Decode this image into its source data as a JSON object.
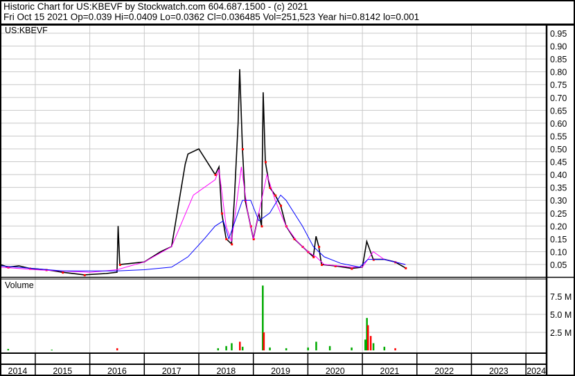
{
  "header": {
    "title": "Historic Chart for US:KBEVF by Stockwatch.com 604.687.1500 - (c) 2021",
    "quote": "Fri Oct 15 2021  Op=0.039  Hi=0.0409  Lo=0.0362  Cl=0.036485  Vol=251,523  Year hi=0.8142  lo=0.001"
  },
  "chart_data": [
    {
      "type": "line",
      "title": "US:KBEVF",
      "ylim": [
        0,
        0.975
      ],
      "yticks": [
        "0.05",
        "0.10",
        "0.15",
        "0.20",
        "0.25",
        "0.30",
        "0.35",
        "0.40",
        "0.45",
        "0.50",
        "0.55",
        "0.60",
        "0.65",
        "0.70",
        "0.75",
        "0.80",
        "0.85",
        "0.90",
        "0.95"
      ],
      "xticks": [
        "2014",
        "2015",
        "2016",
        "2017",
        "2018",
        "2019",
        "2020",
        "2021",
        "2022",
        "2023",
        "2024"
      ],
      "grid": true,
      "colors": {
        "price": "#000000",
        "ma_short": "#ff00ff",
        "ma_long": "#0000ff",
        "down": "#ff0000"
      },
      "series": [
        {
          "key": "price",
          "points": [
            [
              2014.36,
              0.05
            ],
            [
              2014.5,
              0.04
            ],
            [
              2014.7,
              0.045
            ],
            [
              2014.9,
              0.035
            ],
            [
              2015.2,
              0.03
            ],
            [
              2015.5,
              0.02
            ],
            [
              2015.9,
              0.01
            ],
            [
              2016.3,
              0.015
            ],
            [
              2016.5,
              0.02
            ],
            [
              2016.52,
              0.2
            ],
            [
              2016.55,
              0.05
            ],
            [
              2017.0,
              0.06
            ],
            [
              2017.3,
              0.1
            ],
            [
              2017.5,
              0.12
            ],
            [
              2017.75,
              0.44
            ],
            [
              2017.8,
              0.48
            ],
            [
              2018.0,
              0.5
            ],
            [
              2018.3,
              0.4
            ],
            [
              2018.37,
              0.43
            ],
            [
              2018.42,
              0.25
            ],
            [
              2018.5,
              0.15
            ],
            [
              2018.6,
              0.13
            ],
            [
              2018.65,
              0.3
            ],
            [
              2018.72,
              0.6
            ],
            [
              2018.75,
              0.81
            ],
            [
              2018.8,
              0.5
            ],
            [
              2018.85,
              0.3
            ],
            [
              2018.95,
              0.2
            ],
            [
              2019.0,
              0.15
            ],
            [
              2019.1,
              0.25
            ],
            [
              2019.15,
              0.2
            ],
            [
              2019.18,
              0.72
            ],
            [
              2019.22,
              0.45
            ],
            [
              2019.3,
              0.35
            ],
            [
              2019.4,
              0.32
            ],
            [
              2019.5,
              0.28
            ],
            [
              2019.6,
              0.2
            ],
            [
              2019.75,
              0.15
            ],
            [
              2019.9,
              0.12
            ],
            [
              2020.0,
              0.1
            ],
            [
              2020.1,
              0.08
            ],
            [
              2020.15,
              0.16
            ],
            [
              2020.2,
              0.12
            ],
            [
              2020.25,
              0.05
            ],
            [
              2020.5,
              0.045
            ],
            [
              2020.8,
              0.035
            ],
            [
              2021.0,
              0.04
            ],
            [
              2021.08,
              0.14
            ],
            [
              2021.2,
              0.07
            ],
            [
              2021.4,
              0.07
            ],
            [
              2021.6,
              0.06
            ],
            [
              2021.79,
              0.037
            ]
          ]
        },
        {
          "key": "ma_short",
          "points": [
            [
              2014.36,
              0.04
            ],
            [
              2015.0,
              0.03
            ],
            [
              2016.0,
              0.02
            ],
            [
              2016.5,
              0.03
            ],
            [
              2017.0,
              0.06
            ],
            [
              2017.5,
              0.12
            ],
            [
              2017.7,
              0.22
            ],
            [
              2017.9,
              0.32
            ],
            [
              2018.3,
              0.38
            ],
            [
              2018.37,
              0.42
            ],
            [
              2018.5,
              0.2
            ],
            [
              2018.6,
              0.14
            ],
            [
              2018.7,
              0.3
            ],
            [
              2018.78,
              0.43
            ],
            [
              2018.9,
              0.25
            ],
            [
              2019.0,
              0.15
            ],
            [
              2019.15,
              0.3
            ],
            [
              2019.25,
              0.4
            ],
            [
              2019.4,
              0.3
            ],
            [
              2019.6,
              0.2
            ],
            [
              2019.8,
              0.14
            ],
            [
              2020.0,
              0.1
            ],
            [
              2020.15,
              0.08
            ],
            [
              2020.3,
              0.05
            ],
            [
              2020.8,
              0.04
            ],
            [
              2021.0,
              0.04
            ],
            [
              2021.2,
              0.1
            ],
            [
              2021.4,
              0.07
            ],
            [
              2021.79,
              0.05
            ]
          ]
        },
        {
          "key": "ma_long",
          "points": [
            [
              2014.36,
              0.045
            ],
            [
              2015.5,
              0.025
            ],
            [
              2016.5,
              0.025
            ],
            [
              2017.0,
              0.03
            ],
            [
              2017.5,
              0.04
            ],
            [
              2017.8,
              0.08
            ],
            [
              2018.1,
              0.15
            ],
            [
              2018.3,
              0.2
            ],
            [
              2018.45,
              0.22
            ],
            [
              2018.55,
              0.15
            ],
            [
              2018.8,
              0.3
            ],
            [
              2018.95,
              0.3
            ],
            [
              2019.1,
              0.22
            ],
            [
              2019.3,
              0.25
            ],
            [
              2019.5,
              0.32
            ],
            [
              2019.6,
              0.3
            ],
            [
              2019.9,
              0.2
            ],
            [
              2020.1,
              0.12
            ],
            [
              2020.3,
              0.08
            ],
            [
              2020.6,
              0.055
            ],
            [
              2020.95,
              0.04
            ],
            [
              2021.1,
              0.07
            ],
            [
              2021.4,
              0.07
            ],
            [
              2021.79,
              0.05
            ]
          ]
        }
      ]
    },
    {
      "type": "bar",
      "title": "Volume",
      "ylim": [
        0,
        10
      ],
      "yticks": [
        "2.5 M",
        "5.0 M",
        "7.5 M"
      ],
      "colors": {
        "up": "#00aa00",
        "down": "#ff0000"
      },
      "bars": [
        [
          2014.5,
          0.2,
          "up"
        ],
        [
          2015.3,
          0.1,
          "up"
        ],
        [
          2016.5,
          0.3,
          "down"
        ],
        [
          2018.35,
          0.3,
          "up"
        ],
        [
          2018.5,
          0.6,
          "up"
        ],
        [
          2018.6,
          1.0,
          "up"
        ],
        [
          2018.75,
          1.2,
          "down"
        ],
        [
          2018.8,
          0.5,
          "up"
        ],
        [
          2019.17,
          9.0,
          "up"
        ],
        [
          2019.19,
          2.5,
          "down"
        ],
        [
          2019.3,
          0.4,
          "up"
        ],
        [
          2019.6,
          0.3,
          "up"
        ],
        [
          2020.0,
          0.4,
          "up"
        ],
        [
          2020.15,
          1.2,
          "up"
        ],
        [
          2020.4,
          0.6,
          "up"
        ],
        [
          2020.8,
          0.4,
          "up"
        ],
        [
          2021.05,
          1.5,
          "up"
        ],
        [
          2021.08,
          4.5,
          "up"
        ],
        [
          2021.1,
          3.5,
          "down"
        ],
        [
          2021.15,
          2.0,
          "down"
        ],
        [
          2021.2,
          1.0,
          "up"
        ],
        [
          2021.4,
          0.5,
          "up"
        ],
        [
          2021.6,
          0.3,
          "down"
        ]
      ]
    }
  ]
}
